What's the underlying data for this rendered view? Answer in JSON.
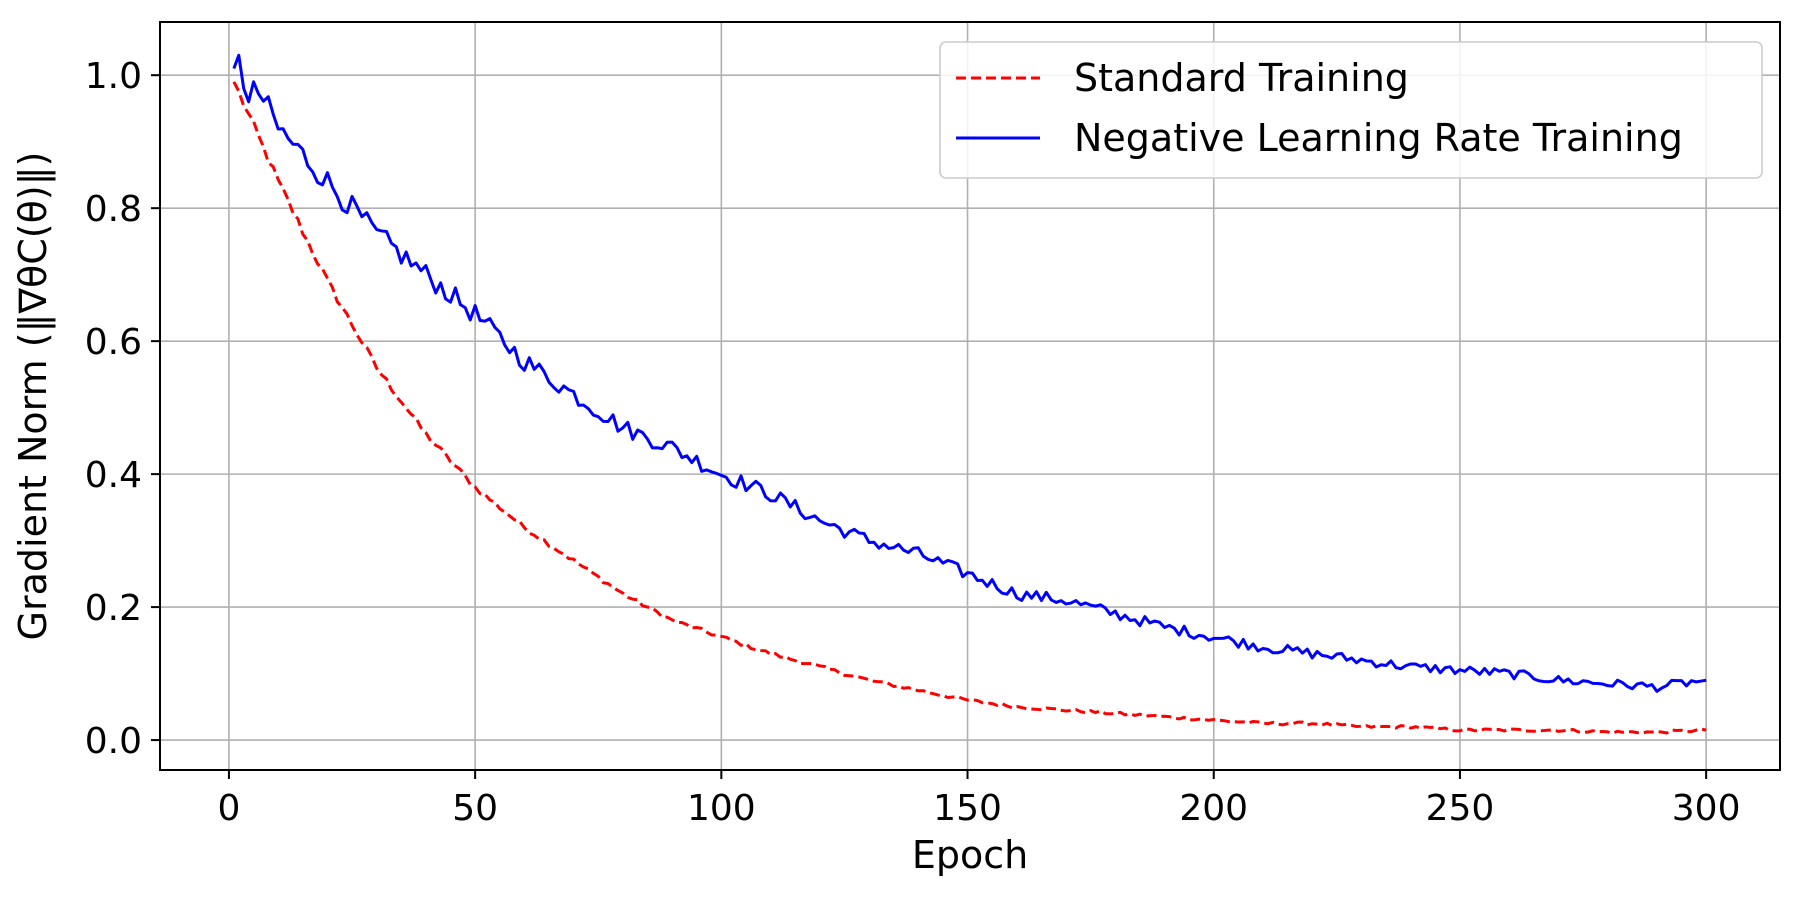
{
  "chart_data": {
    "type": "line",
    "title": "",
    "xlabel": "Epoch",
    "ylabel": "Gradient Norm (‖∇θC(θ)‖)",
    "xlim": [
      -14,
      315
    ],
    "ylim": [
      -0.045,
      1.08
    ],
    "x_ticks": [
      0,
      50,
      100,
      150,
      200,
      250,
      300
    ],
    "y_ticks": [
      0.0,
      0.2,
      0.4,
      0.6,
      0.8,
      1.0
    ],
    "x_tick_labels": [
      "0",
      "50",
      "100",
      "150",
      "200",
      "250",
      "300"
    ],
    "y_tick_labels": [
      "0.0",
      "0.2",
      "0.4",
      "0.6",
      "0.8",
      "1.0"
    ],
    "grid": true,
    "legend_position": "top-right",
    "series": [
      {
        "name": "Standard Training",
        "color": "#ff0000",
        "dash": "dashed",
        "x": [
          1,
          10,
          20,
          30,
          40,
          50,
          60,
          70,
          80,
          90,
          100,
          110,
          120,
          130,
          140,
          150,
          160,
          170,
          180,
          190,
          200,
          210,
          220,
          230,
          240,
          250,
          260,
          270,
          280,
          290,
          300
        ],
        "values": [
          0.99,
          0.84,
          0.69,
          0.56,
          0.46,
          0.38,
          0.32,
          0.27,
          0.22,
          0.18,
          0.155,
          0.13,
          0.11,
          0.09,
          0.075,
          0.06,
          0.05,
          0.045,
          0.04,
          0.035,
          0.03,
          0.025,
          0.025,
          0.02,
          0.02,
          0.015,
          0.015,
          0.015,
          0.012,
          0.012,
          0.015
        ]
      },
      {
        "name": "Negative Learning Rate Training",
        "color": "#0000ff",
        "dash": "solid",
        "x": [
          1,
          2,
          3,
          4,
          5,
          10,
          20,
          30,
          40,
          50,
          60,
          70,
          80,
          90,
          100,
          110,
          120,
          130,
          140,
          150,
          160,
          170,
          180,
          190,
          200,
          210,
          220,
          230,
          240,
          250,
          260,
          270,
          280,
          290,
          300
        ],
        "values": [
          1.01,
          1.03,
          0.98,
          0.96,
          0.99,
          0.92,
          0.84,
          0.76,
          0.7,
          0.64,
          0.57,
          0.52,
          0.47,
          0.44,
          0.4,
          0.37,
          0.33,
          0.3,
          0.28,
          0.25,
          0.22,
          0.21,
          0.19,
          0.17,
          0.155,
          0.14,
          0.13,
          0.12,
          0.11,
          0.105,
          0.1,
          0.09,
          0.085,
          0.08,
          0.09
        ]
      }
    ]
  }
}
